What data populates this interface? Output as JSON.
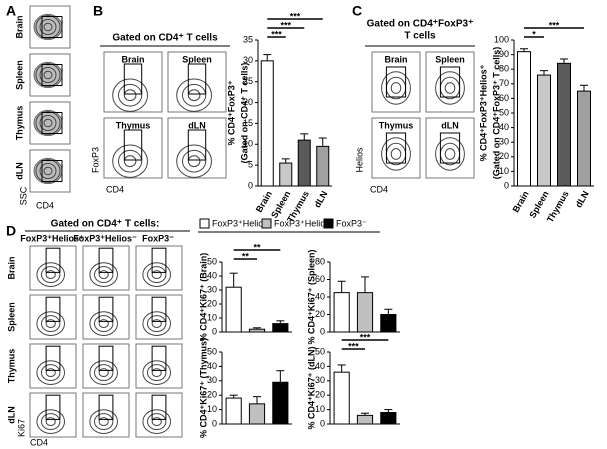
{
  "panel_labels": [
    "A",
    "B",
    "C",
    "D"
  ],
  "panel_a": {
    "rows": [
      "Brain",
      "Spleen",
      "Thymus",
      "dLN"
    ],
    "y_axis": "SSC",
    "x_axis": "CD4"
  },
  "panel_b": {
    "title": "Gated on CD4⁺ T cells",
    "plots": [
      "Brain",
      "Spleen",
      "Thymus",
      "dLN"
    ],
    "y_axis": "FoxP3",
    "x_axis": "CD4"
  },
  "panel_c": {
    "title": [
      "Gated on CD4⁺FoxP3⁺",
      "T cells"
    ],
    "plots": [
      "Brain",
      "Spleen",
      "Thymus",
      "dLN"
    ],
    "y_axis": "Helios",
    "x_axis": "CD4"
  },
  "panel_d": {
    "title": "Gated on CD4⁺ T cells:",
    "columns": [
      "FoxP3⁺Helios⁺",
      "FoxP3⁺Helios⁻",
      "FoxP3⁻"
    ],
    "rows": [
      "Brain",
      "Spleen",
      "Thymus",
      "dLN"
    ],
    "y_axis": "Ki67",
    "x_axis": "CD4",
    "legend": [
      {
        "name": "FoxP3⁺Helios⁺",
        "color": "#ffffff"
      },
      {
        "name": "FoxP3⁺Helios⁻",
        "color": "#c0c0c0"
      },
      {
        "name": "FoxP3⁻",
        "color": "#000000"
      }
    ]
  },
  "chart_data": [
    {
      "type": "bar",
      "ylabel": [
        "% CD4⁺FoxP3⁺",
        "(Gated on CD4⁺ T cells)"
      ],
      "categories": [
        "Brain",
        "Spleen",
        "Thymus",
        "dLN"
      ],
      "values": [
        30,
        5.5,
        11,
        9.5
      ],
      "errors": [
        1.5,
        1,
        1.5,
        2
      ],
      "colors": [
        "#ffffff",
        "#c8c8c8",
        "#5a5a5a",
        "#a0a0a0"
      ],
      "ylim": [
        0,
        35
      ],
      "yticks": [
        0,
        5,
        10,
        15,
        20,
        25,
        30,
        35
      ],
      "significance": [
        "***",
        "***",
        "***"
      ]
    },
    {
      "type": "bar",
      "ylabel": [
        "% CD4⁺FoxP3⁺Helios⁺",
        "(Gated on CD4⁺FoxP3⁺ T cells)"
      ],
      "categories": [
        "Brain",
        "Spleen",
        "Thymus",
        "dLN"
      ],
      "values": [
        92,
        76,
        84,
        65
      ],
      "errors": [
        2,
        3,
        3,
        4
      ],
      "colors": [
        "#ffffff",
        "#c8c8c8",
        "#5a5a5a",
        "#a0a0a0"
      ],
      "ylim": [
        0,
        100
      ],
      "yticks": [
        0,
        10,
        20,
        30,
        40,
        50,
        60,
        70,
        80,
        90,
        100
      ],
      "significance": [
        "*",
        "***"
      ]
    },
    {
      "type": "bar",
      "ylabel": [
        "% CD4⁺Ki67⁺ (Brain)"
      ],
      "values": [
        32,
        2,
        6
      ],
      "errors": [
        10,
        1,
        2
      ],
      "colors": [
        "#ffffff",
        "#c0c0c0",
        "#000000"
      ],
      "ylim": [
        0,
        50
      ],
      "yticks": [
        0,
        10,
        20,
        30,
        40,
        50
      ],
      "significance": [
        "**",
        "**"
      ]
    },
    {
      "type": "bar",
      "ylabel": [
        "% CD4⁺Ki67⁺ (Spleen)"
      ],
      "values": [
        45,
        45,
        20
      ],
      "errors": [
        13,
        18,
        6
      ],
      "colors": [
        "#ffffff",
        "#c0c0c0",
        "#000000"
      ],
      "ylim": [
        0,
        80
      ],
      "yticks": [
        0,
        20,
        40,
        60,
        80
      ]
    },
    {
      "type": "bar",
      "ylabel": [
        "% CD4⁺Ki67⁺ (Thymus)"
      ],
      "values": [
        18,
        14,
        29
      ],
      "errors": [
        2,
        5,
        8
      ],
      "colors": [
        "#ffffff",
        "#c0c0c0",
        "#000000"
      ],
      "ylim": [
        0,
        50
      ],
      "yticks": [
        0,
        10,
        20,
        30,
        40,
        50
      ]
    },
    {
      "type": "bar",
      "ylabel": [
        "% CD4⁺Ki67⁺ (dLN)"
      ],
      "values": [
        36,
        6,
        8
      ],
      "errors": [
        5,
        1.5,
        2
      ],
      "colors": [
        "#ffffff",
        "#c0c0c0",
        "#000000"
      ],
      "ylim": [
        0,
        50
      ],
      "yticks": [
        0,
        10,
        20,
        30,
        40,
        50
      ],
      "significance": [
        "***",
        "***"
      ]
    }
  ]
}
